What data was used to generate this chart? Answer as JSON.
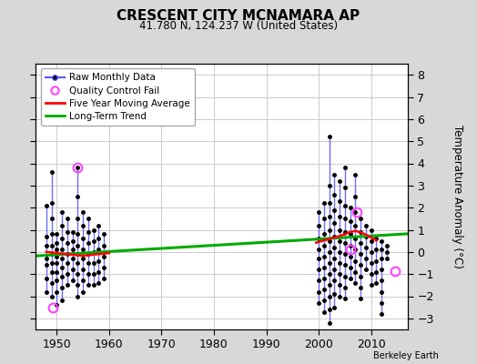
{
  "title": "CRESCENT CITY MCNAMARA AP",
  "subtitle": "41.780 N, 124.237 W (United States)",
  "ylabel": "Temperature Anomaly (°C)",
  "credit": "Berkeley Earth",
  "xlim": [
    1946,
    2017
  ],
  "ylim": [
    -3.5,
    8.5
  ],
  "yticks": [
    -3,
    -2,
    -1,
    0,
    1,
    2,
    3,
    4,
    5,
    6,
    7,
    8
  ],
  "xticks": [
    1950,
    1960,
    1970,
    1980,
    1990,
    2000,
    2010
  ],
  "background_color": "#d8d8d8",
  "plot_bg_color": "#ffffff",
  "grid_color": "#cccccc",
  "raw_data_1950s": {
    "x_center": [
      1948,
      1949,
      1950,
      1951,
      1952,
      1953,
      1954,
      1955,
      1956,
      1957,
      1958,
      1959
    ],
    "y_dots": [
      [
        2.1,
        0.7,
        0.3,
        -0.3,
        -0.6,
        -1.2,
        -1.8
      ],
      [
        3.6,
        2.2,
        1.5,
        0.8,
        0.3,
        -0.1,
        -0.5,
        -0.9,
        -1.4,
        -2.0
      ],
      [
        0.8,
        0.4,
        0.1,
        -0.2,
        -0.5,
        -0.9,
        -1.3,
        -1.8,
        -2.4
      ],
      [
        1.8,
        1.2,
        0.6,
        0.1,
        -0.3,
        -0.7,
        -1.1,
        -1.6,
        -2.2
      ],
      [
        1.5,
        0.9,
        0.4,
        -0.1,
        -0.5,
        -1.0,
        -1.5
      ],
      [
        0.9,
        0.5,
        0.1,
        -0.3,
        -0.8,
        -1.3
      ],
      [
        3.8,
        2.5,
        1.5,
        0.8,
        0.3,
        -0.1,
        -0.5,
        -1.0,
        -1.5,
        -2.0
      ],
      [
        1.8,
        1.2,
        0.6,
        0.1,
        -0.3,
        -0.8,
        -1.3,
        -1.8
      ],
      [
        1.5,
        0.9,
        0.4,
        -0.1,
        -0.5,
        -1.0,
        -1.5
      ],
      [
        1.0,
        0.5,
        0.0,
        -0.5,
        -1.0,
        -1.5
      ],
      [
        1.2,
        0.6,
        0.1,
        -0.4,
        -0.9,
        -1.4
      ],
      [
        0.8,
        0.3,
        -0.2,
        -0.7,
        -1.2
      ]
    ]
  },
  "raw_data_2000s": {
    "x_center": [
      2000,
      2001,
      2002,
      2003,
      2004,
      2005,
      2006,
      2007,
      2008,
      2009,
      2010,
      2011,
      2012,
      2013
    ],
    "y_dots": [
      [
        1.8,
        1.2,
        0.6,
        0.1,
        -0.3,
        -0.8,
        -1.3,
        -1.8,
        -2.3
      ],
      [
        2.2,
        1.5,
        0.8,
        0.3,
        -0.2,
        -0.7,
        -1.2,
        -1.7,
        -2.2,
        -2.7
      ],
      [
        5.2,
        3.0,
        2.2,
        1.6,
        1.0,
        0.5,
        0.0,
        -0.5,
        -1.0,
        -1.5,
        -2.0,
        -2.6,
        -3.2
      ],
      [
        3.5,
        2.6,
        1.9,
        1.3,
        0.7,
        0.2,
        -0.3,
        -0.8,
        -1.3,
        -1.9,
        -2.5
      ],
      [
        3.2,
        2.3,
        1.6,
        1.0,
        0.5,
        0.0,
        -0.5,
        -1.0,
        -1.5,
        -2.0
      ],
      [
        3.8,
        2.9,
        2.1,
        1.5,
        0.9,
        0.4,
        -0.1,
        -0.6,
        -1.1,
        -1.6,
        -2.1
      ],
      [
        2.0,
        1.4,
        0.8,
        0.3,
        -0.2,
        -0.7,
        -1.2
      ],
      [
        3.5,
        2.5,
        1.8,
        1.2,
        0.6,
        0.1,
        -0.4,
        -0.9,
        -1.4
      ],
      [
        1.5,
        0.9,
        0.4,
        -0.1,
        -0.6,
        -1.1,
        -1.6,
        -2.1
      ],
      [
        1.2,
        0.7,
        0.2,
        -0.3,
        -0.8
      ],
      [
        1.0,
        0.5,
        0.0,
        -0.5,
        -1.0,
        -1.5
      ],
      [
        0.6,
        0.1,
        -0.4,
        -0.9,
        -1.4
      ],
      [
        0.5,
        0.1,
        -0.3,
        -0.8,
        -1.3,
        -1.8,
        -2.3,
        -2.8
      ],
      [
        0.3,
        0.0,
        -0.3
      ]
    ]
  },
  "qc_fail_points": [
    [
      1954.0,
      3.8
    ],
    [
      1949.2,
      -2.5
    ],
    [
      2007.3,
      1.8
    ],
    [
      2006.0,
      0.1
    ],
    [
      2014.5,
      -0.85
    ]
  ],
  "five_year_ma_1950s": {
    "x": [
      1948,
      1949,
      1950,
      1951,
      1952,
      1953,
      1954,
      1955,
      1956,
      1957,
      1958,
      1959,
      1960
    ],
    "y": [
      0.0,
      -0.02,
      -0.05,
      -0.08,
      -0.1,
      -0.12,
      -0.15,
      -0.17,
      -0.15,
      -0.12,
      -0.1,
      -0.08,
      -0.05
    ]
  },
  "five_year_ma_2000s": {
    "x": [
      1999.5,
      2000,
      2001,
      2002,
      2003,
      2004,
      2005,
      2006,
      2007,
      2008,
      2009,
      2010,
      2011
    ],
    "y": [
      0.42,
      0.45,
      0.52,
      0.58,
      0.65,
      0.72,
      0.8,
      0.9,
      0.95,
      0.88,
      0.78,
      0.65,
      0.52
    ]
  },
  "long_term_trend": {
    "x": [
      1946,
      2017
    ],
    "y": [
      -0.18,
      0.82
    ]
  },
  "colors": {
    "raw_line": "#5555ff",
    "raw_dot": "#000000",
    "qc_fail": "#ff44ff",
    "five_year_ma": "#ff0000",
    "long_term": "#00aa00"
  }
}
